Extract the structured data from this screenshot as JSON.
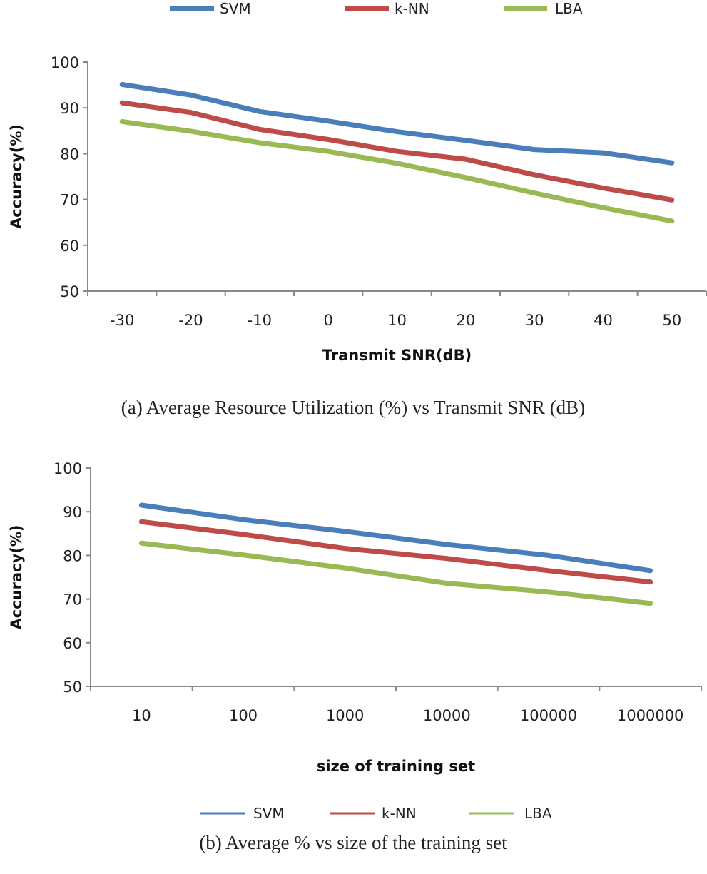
{
  "chart_data": [
    {
      "type": "line",
      "caption": "(a) Average Resource Utilization (%) vs Transmit SNR (dB)",
      "xlabel": "Transmit SNR(dB)",
      "ylabel": "Accuracy(%)",
      "categories": [
        "-30",
        "-20",
        "-10",
        "0",
        "10",
        "20",
        "30",
        "40",
        "50"
      ],
      "ylim": [
        50,
        100
      ],
      "yticks": [
        "50",
        "60",
        "70",
        "80",
        "90",
        "100"
      ],
      "grid": false,
      "legend_position": "top",
      "series": [
        {
          "name": "SVM",
          "color": "#4a7ebb",
          "values": [
            95.1,
            92.8,
            89.2,
            87.1,
            84.8,
            82.9,
            80.9,
            80.2,
            78.0
          ]
        },
        {
          "name": "k-NN",
          "color": "#be4b48",
          "values": [
            91.1,
            89.0,
            85.3,
            83.1,
            80.5,
            78.8,
            75.4,
            72.5,
            69.9
          ]
        },
        {
          "name": "LBA",
          "color": "#98b954",
          "values": [
            87.0,
            84.9,
            82.4,
            80.5,
            77.9,
            74.8,
            71.4,
            68.2,
            65.3
          ]
        }
      ]
    },
    {
      "type": "line",
      "caption": "(b) Average % vs size of the training set",
      "xlabel": "size of training set",
      "ylabel": "Accuracy(%)",
      "categories": [
        "10",
        "100",
        "1000",
        "10000",
        "100000",
        "1000000"
      ],
      "ylim": [
        50,
        100
      ],
      "yticks": [
        "50",
        "60",
        "70",
        "80",
        "90",
        "100"
      ],
      "grid": false,
      "legend_position": "bottom",
      "series": [
        {
          "name": "SVM",
          "color": "#4a7ebb",
          "values": [
            91.5,
            88.2,
            85.5,
            82.5,
            80.0,
            76.5
          ]
        },
        {
          "name": "k-NN",
          "color": "#be4b48",
          "values": [
            87.7,
            84.8,
            81.6,
            79.3,
            76.5,
            73.9
          ]
        },
        {
          "name": "LBA",
          "color": "#98b954",
          "values": [
            82.8,
            80.1,
            77.1,
            73.6,
            71.6,
            69.0
          ]
        }
      ]
    }
  ]
}
